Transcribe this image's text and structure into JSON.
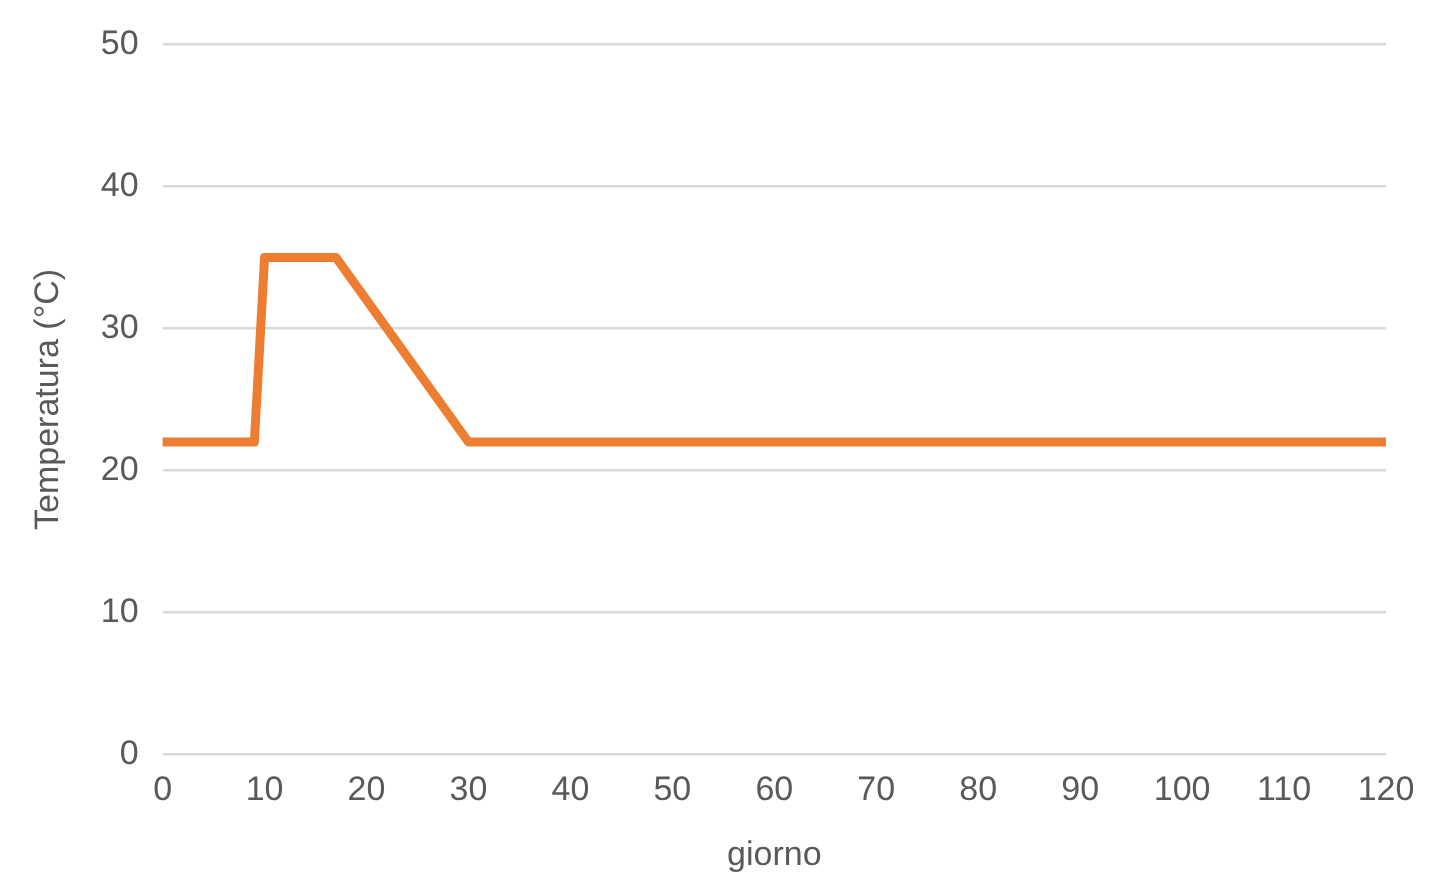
{
  "chart_data": {
    "type": "line",
    "xlabel": "giorno",
    "ylabel": "Temperatura (°C)",
    "x": [
      0,
      9,
      10,
      17,
      30,
      120
    ],
    "series": [
      {
        "color": "#ed7d31",
        "values": [
          22,
          22,
          35,
          35,
          22,
          22
        ]
      }
    ],
    "xlim": [
      0,
      120
    ],
    "xticks": [
      0,
      10,
      20,
      30,
      40,
      50,
      60,
      70,
      80,
      90,
      100,
      110,
      120
    ],
    "ylim": [
      0,
      50
    ],
    "yticks": [
      0,
      10,
      20,
      30,
      40,
      50
    ],
    "grid": "y",
    "legend": false,
    "marker": "none",
    "line_style": "solid"
  }
}
